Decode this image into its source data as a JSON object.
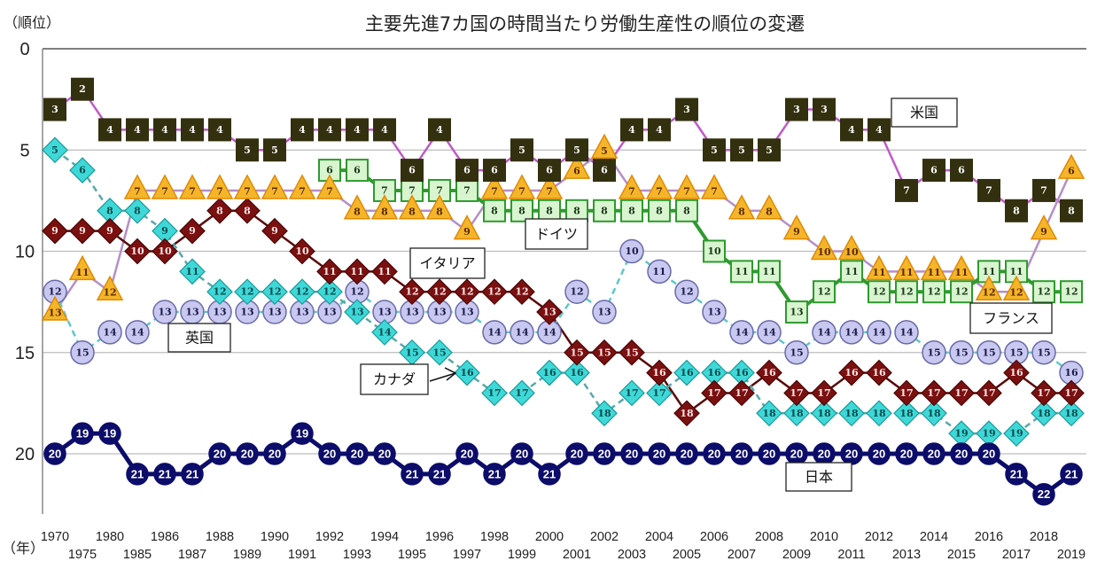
{
  "chart_data": {
    "type": "line",
    "title": "主要先進7カ国の時間当たり労働生産性の順位の変遷",
    "ylabel": "（順位）",
    "xlabel": "（年）",
    "ylim": [
      0,
      23
    ],
    "y_inverted": true,
    "yticks": [
      "0",
      "5",
      "10",
      "15",
      "20"
    ],
    "grid": true,
    "x": [
      "1970",
      "1975",
      "1980",
      "1985",
      "1986",
      "1987",
      "1988",
      "1989",
      "1990",
      "1991",
      "1992",
      "1993",
      "1994",
      "1995",
      "1996",
      "1997",
      "1998",
      "1999",
      "2000",
      "2001",
      "2002",
      "2003",
      "2004",
      "2005",
      "2006",
      "2007",
      "2008",
      "2009",
      "2010",
      "2011",
      "2012",
      "2013",
      "2014",
      "2015",
      "2016",
      "2017",
      "2018",
      "2019"
    ],
    "series": [
      {
        "name": "米国",
        "marker": "square",
        "color": "#33300f",
        "line_color": "#c05ac8",
        "text_color": "#ffffff",
        "values": [
          3,
          2,
          4,
          4,
          4,
          4,
          4,
          5,
          5,
          4,
          4,
          4,
          4,
          6,
          4,
          6,
          6,
          5,
          6,
          5,
          6,
          4,
          4,
          3,
          5,
          5,
          5,
          3,
          3,
          4,
          4,
          7,
          6,
          6,
          7,
          8,
          7,
          8
        ]
      },
      {
        "name": "フランス",
        "marker": "triangle",
        "color": "#f5b52a",
        "line_color": "#b48fc8",
        "text_color": "#5a2a00",
        "values": [
          13,
          11,
          12,
          7,
          7,
          7,
          7,
          7,
          7,
          7,
          7,
          8,
          8,
          8,
          8,
          9,
          7,
          7,
          7,
          6,
          5,
          7,
          7,
          7,
          7,
          8,
          8,
          9,
          10,
          10,
          11,
          11,
          11,
          11,
          12,
          12,
          9,
          6
        ]
      },
      {
        "name": "ドイツ",
        "marker": "square-outline",
        "color": "#d8f5d0",
        "line_color": "#2e9a2e",
        "text_color": "#1a3a1a",
        "values": [
          null,
          null,
          null,
          null,
          null,
          null,
          null,
          null,
          null,
          null,
          6,
          6,
          7,
          7,
          7,
          7,
          8,
          8,
          8,
          8,
          8,
          8,
          8,
          8,
          10,
          11,
          11,
          13,
          12,
          11,
          12,
          12,
          12,
          12,
          11,
          11,
          12,
          12
        ]
      },
      {
        "name": "イタリア",
        "marker": "diamond",
        "color": "#7a1010",
        "line_color": "#5a0a0a",
        "text_color": "#ffe8e8",
        "values": [
          9,
          9,
          9,
          10,
          10,
          9,
          8,
          8,
          9,
          10,
          11,
          11,
          11,
          12,
          12,
          12,
          12,
          12,
          13,
          15,
          15,
          15,
          16,
          18,
          17,
          17,
          16,
          17,
          17,
          16,
          16,
          17,
          17,
          17,
          17,
          16,
          17,
          17
        ]
      },
      {
        "name": "英国",
        "marker": "circle",
        "color": "#c8c8f0",
        "line_color": "#5cc8c8",
        "text_color": "#1a1a4a",
        "values": [
          12,
          15,
          14,
          14,
          13,
          13,
          13,
          13,
          13,
          13,
          13,
          12,
          13,
          13,
          13,
          13,
          14,
          14,
          14,
          12,
          13,
          10,
          11,
          12,
          13,
          14,
          14,
          15,
          14,
          14,
          14,
          14,
          15,
          15,
          15,
          15,
          15,
          16
        ]
      },
      {
        "name": "カナダ",
        "marker": "diamond",
        "color": "#3fd8d8",
        "line_color": "#5aa8a8",
        "text_color": "#0a4a4a",
        "values": [
          5,
          6,
          8,
          8,
          9,
          11,
          12,
          12,
          12,
          12,
          12,
          13,
          14,
          15,
          15,
          16,
          17,
          17,
          16,
          16,
          18,
          17,
          17,
          16,
          16,
          16,
          18,
          18,
          18,
          18,
          18,
          18,
          18,
          19,
          19,
          19,
          18,
          18
        ]
      },
      {
        "name": "日本",
        "marker": "circle",
        "color": "#0c0c6a",
        "line_color": "#0c0c6a",
        "text_color": "#ffffff",
        "values": [
          20,
          19,
          19,
          21,
          21,
          21,
          20,
          20,
          20,
          19,
          20,
          20,
          20,
          21,
          21,
          20,
          21,
          20,
          21,
          20,
          20,
          20,
          20,
          20,
          20,
          20,
          20,
          20,
          20,
          20,
          20,
          20,
          20,
          20,
          20,
          21,
          22,
          21
        ]
      }
    ],
    "annotations": [
      {
        "text": "米国",
        "series": "米国"
      },
      {
        "text": "ドイツ",
        "series": "ドイツ"
      },
      {
        "text": "イタリア",
        "series": "イタリア"
      },
      {
        "text": "英国",
        "series": "英国"
      },
      {
        "text": "カナダ",
        "series": "カナダ",
        "arrow": true
      },
      {
        "text": "フランス",
        "series": "フランス"
      },
      {
        "text": "日本",
        "series": "日本"
      }
    ]
  }
}
